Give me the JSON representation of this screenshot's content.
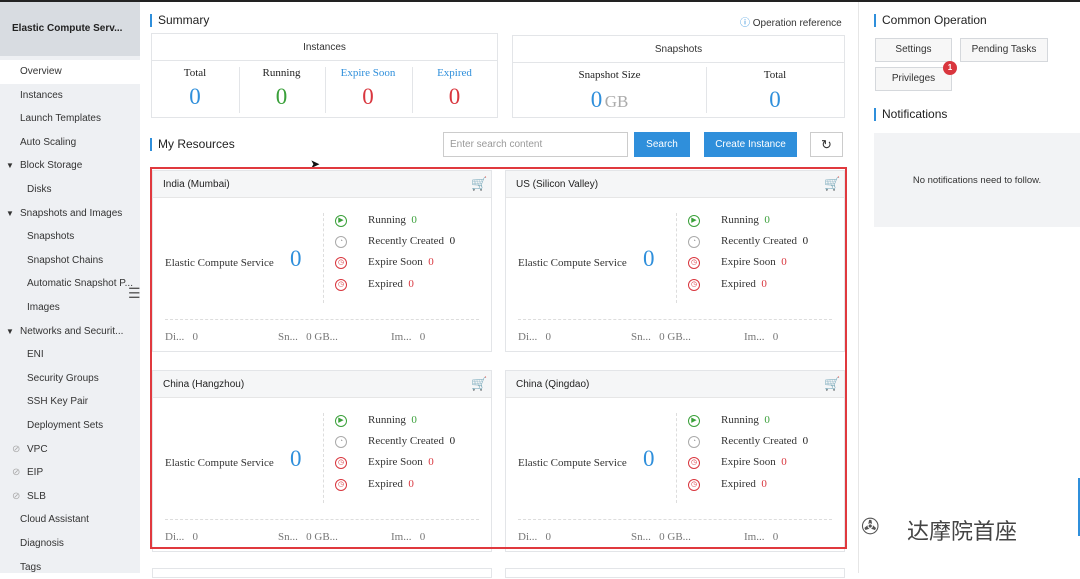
{
  "sidebar": {
    "title": "Elastic Compute Serv...",
    "items": [
      {
        "label": "Overview"
      },
      {
        "label": "Instances"
      },
      {
        "label": "Launch Templates"
      },
      {
        "label": "Auto Scaling"
      },
      {
        "label": "Block Storage",
        "children": [
          {
            "label": "Disks"
          }
        ]
      },
      {
        "label": "Snapshots and Images",
        "children": [
          {
            "label": "Snapshots"
          },
          {
            "label": "Snapshot Chains"
          },
          {
            "label": "Automatic Snapshot P..."
          },
          {
            "label": "Images"
          }
        ]
      },
      {
        "label": "Networks and Securit...",
        "children": [
          {
            "label": "ENI"
          },
          {
            "label": "Security Groups"
          },
          {
            "label": "SSH Key Pair"
          },
          {
            "label": "Deployment Sets"
          }
        ]
      },
      {
        "label": "VPC",
        "link": true
      },
      {
        "label": "EIP",
        "link": true
      },
      {
        "label": "SLB",
        "link": true
      },
      {
        "label": "Cloud Assistant"
      },
      {
        "label": "Diagnosis"
      },
      {
        "label": "Tags"
      }
    ]
  },
  "summary": {
    "title": "Summary",
    "reference": "Operation reference",
    "instances": {
      "title": "Instances",
      "stats": [
        {
          "label": "Total",
          "value": 0
        },
        {
          "label": "Running",
          "value": 0
        },
        {
          "label": "Expire Soon",
          "value": 0
        },
        {
          "label": "Expired",
          "value": 0
        }
      ]
    },
    "snapshots": {
      "title": "Snapshots",
      "stats": [
        {
          "label": "Snapshot Size",
          "value": 0,
          "unit": "GB"
        },
        {
          "label": "Total",
          "value": 0
        }
      ]
    }
  },
  "resources": {
    "title": "My Resources",
    "search_placeholder": "Enter search content",
    "search_button": "Search",
    "create_button": "Create Instance",
    "regions": [
      {
        "name": "India (Mumbai)",
        "service": "Elastic Compute Service",
        "count": 0,
        "statuses": [
          {
            "label": "Running",
            "value": 0
          },
          {
            "label": "Recently Created",
            "value": 0
          },
          {
            "label": "Expire Soon",
            "value": 0
          },
          {
            "label": "Expired",
            "value": 0
          }
        ],
        "footer": [
          {
            "label": "Di...",
            "value": "0"
          },
          {
            "label": "Sn...",
            "value": "0 GB..."
          },
          {
            "label": "Im...",
            "value": "0"
          }
        ]
      },
      {
        "name": "US (Silicon Valley)",
        "service": "Elastic Compute Service",
        "count": 0,
        "statuses": [
          {
            "label": "Running",
            "value": 0
          },
          {
            "label": "Recently Created",
            "value": 0
          },
          {
            "label": "Expire Soon",
            "value": 0
          },
          {
            "label": "Expired",
            "value": 0
          }
        ],
        "footer": [
          {
            "label": "Di...",
            "value": "0"
          },
          {
            "label": "Sn...",
            "value": "0 GB..."
          },
          {
            "label": "Im...",
            "value": "0"
          }
        ]
      },
      {
        "name": "China (Hangzhou)",
        "service": "Elastic Compute Service",
        "count": 0,
        "statuses": [
          {
            "label": "Running",
            "value": 0
          },
          {
            "label": "Recently Created",
            "value": 0
          },
          {
            "label": "Expire Soon",
            "value": 0
          },
          {
            "label": "Expired",
            "value": 0
          }
        ],
        "footer": [
          {
            "label": "Di...",
            "value": "0"
          },
          {
            "label": "Sn...",
            "value": "0 GB..."
          },
          {
            "label": "Im...",
            "value": "0"
          }
        ]
      },
      {
        "name": "China (Qingdao)",
        "service": "Elastic Compute Service",
        "count": 0,
        "statuses": [
          {
            "label": "Running",
            "value": 0
          },
          {
            "label": "Recently Created",
            "value": 0
          },
          {
            "label": "Expire Soon",
            "value": 0
          },
          {
            "label": "Expired",
            "value": 0
          }
        ],
        "footer": [
          {
            "label": "Di...",
            "value": "0"
          },
          {
            "label": "Sn...",
            "value": "0 GB..."
          },
          {
            "label": "Im...",
            "value": "0"
          }
        ]
      }
    ]
  },
  "common_operation": {
    "title": "Common Operation",
    "buttons": [
      {
        "label": "Settings"
      },
      {
        "label": "Pending Tasks"
      },
      {
        "label": "Privileges",
        "badge": 1
      }
    ]
  },
  "notifications": {
    "title": "Notifications",
    "empty": "No notifications need to follow."
  },
  "watermark": "达摩院首座"
}
